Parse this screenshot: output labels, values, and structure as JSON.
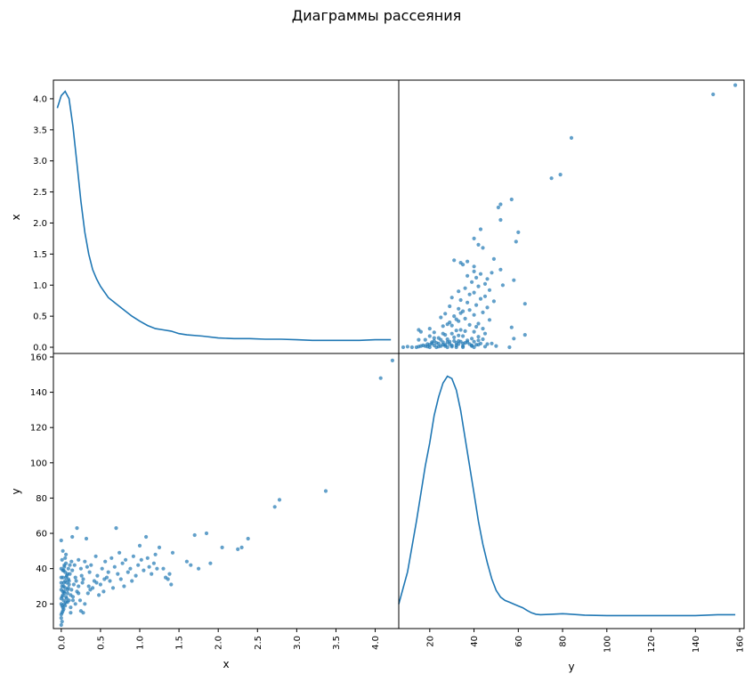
{
  "title": "Диаграммы рассеяния",
  "chart_data": {
    "type": "scatter_matrix",
    "variables": [
      "x",
      "y"
    ],
    "series_color": "#1f77b4",
    "ranges": {
      "x": [
        -0.1,
        4.3
      ],
      "y": [
        6,
        162
      ]
    },
    "x_ticks": [
      "0.0",
      "0.5",
      "1.0",
      "1.5",
      "2.0",
      "2.5",
      "3.0",
      "3.5",
      "4.0"
    ],
    "y_ticks": [
      "20",
      "40",
      "60",
      "80",
      "100",
      "120",
      "140",
      "160"
    ],
    "x_tick_values": [
      0,
      0.5,
      1,
      1.5,
      2,
      2.5,
      3,
      3.5,
      4
    ],
    "y_tick_values": [
      20,
      40,
      60,
      80,
      100,
      120,
      140,
      160
    ],
    "x_kde_ticks": [
      "0.0",
      "0.5",
      "1.0",
      "1.5",
      "2.0",
      "2.5",
      "3.0",
      "3.5",
      "4.0"
    ],
    "x_kde_tick_values": [
      0,
      0.5,
      1,
      1.5,
      2,
      2.5,
      3,
      3.5,
      4
    ],
    "kde_x": {
      "x": [
        -0.05,
        0.0,
        0.05,
        0.1,
        0.15,
        0.2,
        0.25,
        0.3,
        0.35,
        0.4,
        0.45,
        0.5,
        0.6,
        0.7,
        0.8,
        0.9,
        1.0,
        1.1,
        1.2,
        1.3,
        1.4,
        1.5,
        1.6,
        1.8,
        2.0,
        2.2,
        2.4,
        2.6,
        2.8,
        3.0,
        3.2,
        3.4,
        3.6,
        3.8,
        4.0,
        4.2
      ],
      "y": [
        3.85,
        4.05,
        4.12,
        4.0,
        3.55,
        2.95,
        2.35,
        1.85,
        1.5,
        1.25,
        1.1,
        0.98,
        0.8,
        0.7,
        0.6,
        0.5,
        0.42,
        0.35,
        0.3,
        0.28,
        0.26,
        0.22,
        0.2,
        0.18,
        0.15,
        0.14,
        0.14,
        0.13,
        0.13,
        0.12,
        0.11,
        0.11,
        0.11,
        0.11,
        0.12,
        0.12
      ]
    },
    "kde_y": {
      "x": [
        6,
        10,
        14,
        18,
        20,
        22,
        24,
        26,
        28,
        30,
        32,
        34,
        36,
        38,
        40,
        42,
        44,
        46,
        48,
        50,
        52,
        54,
        56,
        58,
        60,
        62,
        64,
        66,
        68,
        70,
        75,
        80,
        90,
        100,
        110,
        120,
        130,
        140,
        150,
        158
      ],
      "y": [
        0.003,
        0.01,
        0.021,
        0.033,
        0.038,
        0.044,
        0.048,
        0.051,
        0.0525,
        0.052,
        0.0495,
        0.045,
        0.039,
        0.033,
        0.027,
        0.021,
        0.016,
        0.012,
        0.0085,
        0.006,
        0.0045,
        0.0038,
        0.0034,
        0.003,
        0.0026,
        0.0022,
        0.0016,
        0.0011,
        0.0008,
        0.0007,
        0.0008,
        0.0009,
        0.0006,
        0.0005,
        0.0005,
        0.0005,
        0.0005,
        0.0005,
        0.0007,
        0.0007
      ]
    },
    "points": [
      [
        0.0,
        8
      ],
      [
        0.0,
        12
      ],
      [
        0.01,
        15
      ],
      [
        0.02,
        18
      ],
      [
        0.0,
        20
      ],
      [
        0.03,
        22
      ],
      [
        0.01,
        24
      ],
      [
        0.02,
        25
      ],
      [
        0.04,
        26
      ],
      [
        0.0,
        28
      ],
      [
        0.01,
        30
      ],
      [
        0.03,
        32
      ],
      [
        0.02,
        35
      ],
      [
        0.05,
        38
      ],
      [
        0.0,
        40
      ],
      [
        0.04,
        42
      ],
      [
        0.01,
        45
      ],
      [
        0.06,
        48
      ],
      [
        0.02,
        50
      ],
      [
        0.0,
        56
      ],
      [
        0.03,
        17
      ],
      [
        0.05,
        19
      ],
      [
        0.06,
        21
      ],
      [
        0.07,
        23
      ],
      [
        0.08,
        26
      ],
      [
        0.04,
        27
      ],
      [
        0.09,
        29
      ],
      [
        0.1,
        31
      ],
      [
        0.05,
        33
      ],
      [
        0.07,
        36
      ],
      [
        0.0,
        14
      ],
      [
        0.02,
        16
      ],
      [
        0.04,
        20
      ],
      [
        0.06,
        24
      ],
      [
        0.08,
        28
      ],
      [
        0.1,
        22
      ],
      [
        0.12,
        25
      ],
      [
        0.03,
        30
      ],
      [
        0.09,
        34
      ],
      [
        0.11,
        37
      ],
      [
        0.01,
        10
      ],
      [
        0.0,
        23
      ],
      [
        0.02,
        27
      ],
      [
        0.05,
        29
      ],
      [
        0.07,
        32
      ],
      [
        0.0,
        35
      ],
      [
        0.03,
        39
      ],
      [
        0.06,
        43
      ],
      [
        0.01,
        19
      ],
      [
        0.08,
        21
      ],
      [
        0.12,
        18
      ],
      [
        0.15,
        24
      ],
      [
        0.13,
        28
      ],
      [
        0.16,
        31
      ],
      [
        0.18,
        35
      ],
      [
        0.14,
        39
      ],
      [
        0.17,
        42
      ],
      [
        0.2,
        27
      ],
      [
        0.19,
        33
      ],
      [
        0.22,
        30
      ],
      [
        0.14,
        58
      ],
      [
        0.2,
        63
      ],
      [
        0.22,
        45
      ],
      [
        0.25,
        40
      ],
      [
        0.18,
        20
      ],
      [
        0.24,
        22
      ],
      [
        0.26,
        36
      ],
      [
        0.28,
        34
      ],
      [
        0.3,
        44
      ],
      [
        0.32,
        57
      ],
      [
        0.28,
        15
      ],
      [
        0.34,
        26
      ],
      [
        0.35,
        30
      ],
      [
        0.36,
        38
      ],
      [
        0.38,
        42
      ],
      [
        0.4,
        29
      ],
      [
        0.42,
        33
      ],
      [
        0.44,
        47
      ],
      [
        0.46,
        36
      ],
      [
        0.48,
        25
      ],
      [
        0.5,
        31
      ],
      [
        0.52,
        40
      ],
      [
        0.54,
        27
      ],
      [
        0.56,
        44
      ],
      [
        0.58,
        35
      ],
      [
        0.6,
        38
      ],
      [
        0.62,
        33
      ],
      [
        0.64,
        46
      ],
      [
        0.66,
        29
      ],
      [
        0.68,
        41
      ],
      [
        0.7,
        63
      ],
      [
        0.72,
        37
      ],
      [
        0.74,
        49
      ],
      [
        0.76,
        34
      ],
      [
        0.78,
        43
      ],
      [
        0.8,
        30
      ],
      [
        0.82,
        45
      ],
      [
        0.85,
        38
      ],
      [
        0.88,
        40
      ],
      [
        0.9,
        33
      ],
      [
        0.92,
        47
      ],
      [
        0.95,
        36
      ],
      [
        0.98,
        42
      ],
      [
        1.0,
        53
      ],
      [
        1.02,
        45
      ],
      [
        1.05,
        39
      ],
      [
        1.08,
        58
      ],
      [
        1.1,
        46
      ],
      [
        1.12,
        41
      ],
      [
        1.15,
        37
      ],
      [
        1.18,
        43
      ],
      [
        1.2,
        48
      ],
      [
        1.22,
        40
      ],
      [
        1.25,
        52
      ],
      [
        1.3,
        40
      ],
      [
        1.33,
        35
      ],
      [
        1.36,
        34
      ],
      [
        1.38,
        37
      ],
      [
        1.4,
        31
      ],
      [
        1.42,
        49
      ],
      [
        1.6,
        44
      ],
      [
        1.65,
        42
      ],
      [
        1.7,
        59
      ],
      [
        1.75,
        40
      ],
      [
        1.85,
        60
      ],
      [
        1.9,
        43
      ],
      [
        2.05,
        52
      ],
      [
        2.25,
        51
      ],
      [
        2.3,
        52
      ],
      [
        2.38,
        57
      ],
      [
        2.72,
        75
      ],
      [
        2.78,
        79
      ],
      [
        3.37,
        84
      ],
      [
        4.07,
        148
      ],
      [
        4.22,
        158
      ],
      [
        0.02,
        39
      ],
      [
        0.04,
        41
      ],
      [
        0.06,
        35
      ],
      [
        0.09,
        40
      ],
      [
        0.11,
        42
      ],
      [
        0.13,
        44
      ],
      [
        0.05,
        46
      ],
      [
        0.08,
        37
      ],
      [
        0.1,
        33
      ],
      [
        0.0,
        32
      ],
      [
        0.15,
        22
      ],
      [
        0.25,
        16
      ],
      [
        0.3,
        20
      ],
      [
        0.12,
        15
      ],
      [
        0.22,
        26
      ],
      [
        0.27,
        32
      ],
      [
        0.33,
        41
      ],
      [
        0.37,
        28
      ],
      [
        0.45,
        32
      ],
      [
        0.55,
        34
      ]
    ]
  }
}
